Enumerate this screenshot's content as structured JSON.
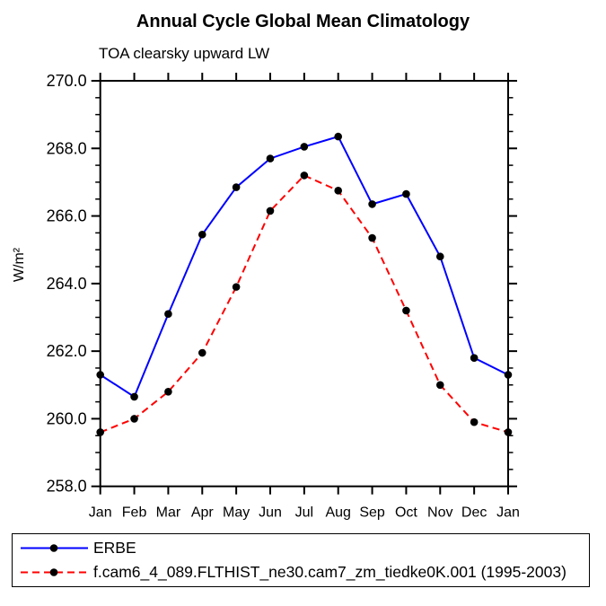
{
  "chart_data": {
    "type": "line",
    "title": "Annual Cycle Global Mean Climatology",
    "subtitle": "TOA clearsky upward LW",
    "ylabel": "W/m²",
    "xlabel": "",
    "categories": [
      "Jan",
      "Feb",
      "Mar",
      "Apr",
      "May",
      "Jun",
      "Jul",
      "Aug",
      "Sep",
      "Oct",
      "Nov",
      "Dec",
      "Jan"
    ],
    "ylim": [
      258.0,
      270.0
    ],
    "ytick_major_step": 2.0,
    "ytick_minor_step": 0.5,
    "ytick_labels": [
      "258.0",
      "260.0",
      "262.0",
      "264.0",
      "266.0",
      "268.0",
      "270.0"
    ],
    "grid": false,
    "axis_color": "#000000",
    "legend_position": "bottom-left-box",
    "series": [
      {
        "name": "ERBE",
        "color": "#0000ff",
        "line_style": "solid",
        "marker": "filled-circle",
        "marker_color": "#000000",
        "values": [
          261.3,
          260.65,
          263.1,
          265.45,
          266.85,
          267.7,
          268.05,
          268.35,
          266.35,
          266.65,
          264.8,
          261.8,
          261.3
        ]
      },
      {
        "name": "f.cam6_4_089.FLTHIST_ne30.cam7_zm_tiedke0K.001 (1995-2003)",
        "color": "#ff0000",
        "line_style": "dashed",
        "marker": "filled-circle",
        "marker_color": "#000000",
        "values": [
          259.6,
          260.0,
          260.8,
          261.95,
          263.9,
          266.15,
          267.2,
          266.75,
          265.35,
          263.2,
          261.0,
          259.9,
          259.6
        ]
      }
    ]
  }
}
